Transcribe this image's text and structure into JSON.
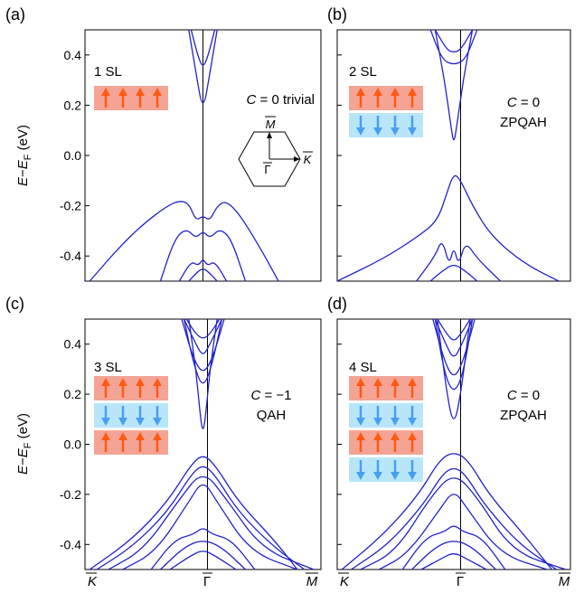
{
  "figure": {
    "ylabel_main": "E",
    "ylabel_minus": "−",
    "ylabel_sub_base": "E",
    "ylabel_sub": "F",
    "ylabel_unit": " (eV)",
    "y_ticks": [
      "0.4",
      "0.2",
      "0.0",
      "-0.2",
      "-0.4"
    ],
    "x_ticks": [
      "K",
      "Γ",
      "M"
    ]
  },
  "chart_data": [
    {
      "type": "line",
      "panel": "(a)",
      "sl_label": "1 SL",
      "layers": [
        "up"
      ],
      "c_label": "C",
      "c_value": " = 0 trivial",
      "phase": "",
      "ylim": [
        -0.5,
        0.5
      ],
      "x_ticks": [
        "K",
        "Γ",
        "M"
      ],
      "bz_inset": {
        "labels": [
          "M",
          "Γ",
          "K"
        ]
      },
      "series": [
        {
          "x": [
            0.02,
            0.15,
            0.25,
            0.35,
            0.4,
            0.44,
            0.47,
            0.5,
            0.53,
            0.56,
            0.6,
            0.66,
            0.75,
            0.82
          ],
          "y": [
            -0.5,
            -0.36,
            -0.27,
            -0.2,
            -0.18,
            -0.19,
            -0.26,
            -0.24,
            -0.26,
            -0.2,
            -0.18,
            -0.24,
            -0.38,
            -0.5
          ]
        },
        {
          "x": [
            0.32,
            0.38,
            0.43,
            0.47,
            0.5,
            0.53,
            0.57,
            0.62,
            0.68
          ],
          "y": [
            -0.5,
            -0.33,
            -0.29,
            -0.33,
            -0.3,
            -0.33,
            -0.29,
            -0.33,
            -0.5
          ]
        },
        {
          "x": [
            0.4,
            0.45,
            0.48,
            0.5,
            0.52,
            0.55,
            0.6
          ],
          "y": [
            -0.5,
            -0.42,
            -0.44,
            -0.41,
            -0.44,
            -0.42,
            -0.5
          ]
        },
        {
          "x": [
            0.44,
            0.48,
            0.5,
            0.52,
            0.56
          ],
          "y": [
            -0.5,
            -0.46,
            -0.45,
            -0.46,
            -0.5
          ]
        },
        {
          "x": [
            0.44,
            0.47,
            0.5,
            0.53,
            0.56
          ],
          "y": [
            0.5,
            0.33,
            0.17,
            0.33,
            0.5
          ]
        },
        {
          "x": [
            0.45,
            0.48,
            0.5,
            0.52,
            0.55
          ],
          "y": [
            0.5,
            0.39,
            0.35,
            0.39,
            0.5
          ]
        }
      ]
    },
    {
      "type": "line",
      "panel": "(b)",
      "sl_label": "2 SL",
      "layers": [
        "up",
        "down"
      ],
      "c_label": "C",
      "c_value": " = 0",
      "phase": "ZPQAH",
      "ylim": [
        -0.5,
        0.5
      ],
      "x_ticks": [
        "K",
        "Γ",
        "M"
      ],
      "series": [
        {
          "x": [
            0.0,
            0.2,
            0.35,
            0.43,
            0.47,
            0.5,
            0.53,
            0.58,
            0.66,
            0.8,
            0.95
          ],
          "y": [
            -0.5,
            -0.41,
            -0.32,
            -0.26,
            -0.15,
            -0.07,
            -0.1,
            -0.2,
            -0.32,
            -0.43,
            -0.5
          ]
        },
        {
          "x": [
            0.34,
            0.42,
            0.45,
            0.48,
            0.5,
            0.52,
            0.55,
            0.6,
            0.7
          ],
          "y": [
            -0.5,
            -0.4,
            -0.33,
            -0.44,
            -0.36,
            -0.44,
            -0.34,
            -0.41,
            -0.5
          ]
        },
        {
          "x": [
            0.4,
            0.45,
            0.5,
            0.55,
            0.6
          ],
          "y": [
            -0.5,
            -0.46,
            -0.43,
            -0.46,
            -0.5
          ]
        },
        {
          "x": [
            0.42,
            0.46,
            0.49,
            0.5,
            0.51,
            0.54,
            0.58
          ],
          "y": [
            0.5,
            0.3,
            0.1,
            0.05,
            0.1,
            0.3,
            0.5
          ]
        },
        {
          "x": [
            0.4,
            0.45,
            0.5,
            0.55,
            0.6
          ],
          "y": [
            0.5,
            0.38,
            0.36,
            0.38,
            0.5
          ]
        },
        {
          "x": [
            0.42,
            0.47,
            0.5,
            0.53,
            0.58
          ],
          "y": [
            0.5,
            0.42,
            0.41,
            0.42,
            0.5
          ]
        }
      ]
    },
    {
      "type": "line",
      "panel": "(c)",
      "sl_label": "3 SL",
      "layers": [
        "up",
        "down",
        "up"
      ],
      "c_label": "C",
      "c_value": " = −1",
      "phase": "QAH",
      "ylim": [
        -0.5,
        0.5
      ],
      "x_ticks": [
        "K",
        "Γ",
        "M"
      ],
      "series": [
        {
          "x": [
            0.02,
            0.2,
            0.35,
            0.45,
            0.5,
            0.55,
            0.65,
            0.8,
            0.9
          ],
          "y": [
            -0.5,
            -0.38,
            -0.23,
            -0.08,
            -0.04,
            -0.08,
            -0.23,
            -0.38,
            -0.5
          ]
        },
        {
          "x": [
            0.05,
            0.2,
            0.35,
            0.45,
            0.5,
            0.55,
            0.65,
            0.8,
            0.93
          ],
          "y": [
            -0.5,
            -0.41,
            -0.27,
            -0.12,
            -0.08,
            -0.12,
            -0.27,
            -0.41,
            -0.5
          ]
        },
        {
          "x": [
            0.1,
            0.25,
            0.4,
            0.5,
            0.6,
            0.75,
            0.97
          ],
          "y": [
            -0.5,
            -0.42,
            -0.22,
            -0.1,
            -0.22,
            -0.42,
            -0.5
          ]
        },
        {
          "x": [
            0.16,
            0.3,
            0.44,
            0.5,
            0.56,
            0.7,
            0.9
          ],
          "y": [
            -0.5,
            -0.43,
            -0.23,
            -0.14,
            -0.23,
            -0.43,
            -0.5
          ]
        },
        {
          "x": [
            0.28,
            0.38,
            0.46,
            0.5,
            0.54,
            0.62,
            0.72
          ],
          "y": [
            -0.5,
            -0.38,
            -0.36,
            -0.33,
            -0.36,
            -0.38,
            -0.5
          ]
        },
        {
          "x": [
            0.32,
            0.42,
            0.5,
            0.58,
            0.68
          ],
          "y": [
            -0.5,
            -0.41,
            -0.38,
            -0.41,
            -0.5
          ]
        },
        {
          "x": [
            0.36,
            0.44,
            0.5,
            0.56,
            0.64
          ],
          "y": [
            -0.5,
            -0.45,
            -0.42,
            -0.45,
            -0.5
          ]
        },
        {
          "x": [
            0.44,
            0.47,
            0.49,
            0.5,
            0.51,
            0.53,
            0.56
          ],
          "y": [
            0.5,
            0.3,
            0.1,
            0.05,
            0.1,
            0.3,
            0.5
          ]
        },
        {
          "x": [
            0.42,
            0.46,
            0.5,
            0.54,
            0.58
          ],
          "y": [
            0.5,
            0.32,
            0.22,
            0.32,
            0.5
          ]
        },
        {
          "x": [
            0.41,
            0.46,
            0.5,
            0.54,
            0.59
          ],
          "y": [
            0.5,
            0.34,
            0.28,
            0.34,
            0.5
          ]
        },
        {
          "x": [
            0.42,
            0.47,
            0.5,
            0.53,
            0.58
          ],
          "y": [
            0.5,
            0.4,
            0.35,
            0.4,
            0.5
          ]
        },
        {
          "x": [
            0.43,
            0.47,
            0.5,
            0.53,
            0.57
          ],
          "y": [
            0.5,
            0.44,
            0.42,
            0.44,
            0.5
          ]
        }
      ]
    },
    {
      "type": "line",
      "panel": "(d)",
      "sl_label": "4 SL",
      "layers": [
        "up",
        "down",
        "up",
        "down"
      ],
      "c_label": "C",
      "c_value": " = 0",
      "phase": "ZPQAH",
      "ylim": [
        -0.5,
        0.5
      ],
      "x_ticks": [
        "K",
        "Γ",
        "M"
      ],
      "series": [
        {
          "x": [
            0.02,
            0.2,
            0.35,
            0.44,
            0.5,
            0.56,
            0.65,
            0.8,
            0.92
          ],
          "y": [
            -0.5,
            -0.36,
            -0.2,
            -0.06,
            -0.03,
            -0.06,
            -0.2,
            -0.36,
            -0.5
          ]
        },
        {
          "x": [
            0.06,
            0.22,
            0.37,
            0.45,
            0.5,
            0.55,
            0.63,
            0.78,
            0.94
          ],
          "y": [
            -0.5,
            -0.4,
            -0.24,
            -0.12,
            -0.09,
            -0.12,
            -0.24,
            -0.4,
            -0.5
          ]
        },
        {
          "x": [
            0.1,
            0.25,
            0.4,
            0.5,
            0.6,
            0.75,
            0.98
          ],
          "y": [
            -0.5,
            -0.43,
            -0.21,
            -0.11,
            -0.21,
            -0.43,
            -0.5
          ]
        },
        {
          "x": [
            0.18,
            0.3,
            0.44,
            0.5,
            0.56,
            0.7,
            0.9
          ],
          "y": [
            -0.5,
            -0.44,
            -0.26,
            -0.18,
            -0.26,
            -0.44,
            -0.5
          ]
        },
        {
          "x": [
            0.28,
            0.38,
            0.46,
            0.5,
            0.54,
            0.62,
            0.72
          ],
          "y": [
            -0.5,
            -0.37,
            -0.35,
            -0.32,
            -0.35,
            -0.37,
            -0.5
          ]
        },
        {
          "x": [
            0.32,
            0.42,
            0.5,
            0.58,
            0.68
          ],
          "y": [
            -0.5,
            -0.41,
            -0.38,
            -0.41,
            -0.5
          ]
        },
        {
          "x": [
            0.36,
            0.44,
            0.5,
            0.56,
            0.64
          ],
          "y": [
            -0.5,
            -0.46,
            -0.43,
            -0.46,
            -0.5
          ]
        },
        {
          "x": [
            0.43,
            0.47,
            0.5,
            0.53,
            0.57
          ],
          "y": [
            0.5,
            0.2,
            0.07,
            0.2,
            0.5
          ]
        },
        {
          "x": [
            0.42,
            0.46,
            0.5,
            0.54,
            0.58
          ],
          "y": [
            0.5,
            0.28,
            0.2,
            0.28,
            0.5
          ]
        },
        {
          "x": [
            0.41,
            0.46,
            0.5,
            0.54,
            0.59
          ],
          "y": [
            0.5,
            0.33,
            0.26,
            0.33,
            0.5
          ]
        },
        {
          "x": [
            0.42,
            0.47,
            0.5,
            0.53,
            0.58
          ],
          "y": [
            0.5,
            0.39,
            0.34,
            0.39,
            0.5
          ]
        },
        {
          "x": [
            0.43,
            0.47,
            0.5,
            0.53,
            0.57
          ],
          "y": [
            0.5,
            0.44,
            0.41,
            0.44,
            0.5
          ]
        }
      ]
    }
  ]
}
